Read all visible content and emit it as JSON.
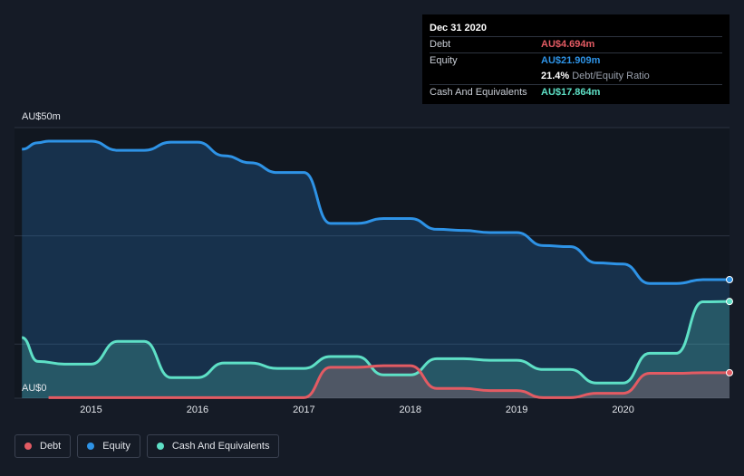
{
  "tooltip": {
    "date": "Dec 31 2020",
    "debt_label": "Debt",
    "debt_value": "AU$4.694m",
    "equity_label": "Equity",
    "equity_value": "AU$21.909m",
    "ratio_value": "21.4%",
    "ratio_label": "Debt/Equity Ratio",
    "cash_label": "Cash And Equivalents",
    "cash_value": "AU$17.864m"
  },
  "legend": [
    {
      "label": "Debt",
      "color": "#e35b63"
    },
    {
      "label": "Equity",
      "color": "#2e93e6"
    },
    {
      "label": "Cash And Equivalents",
      "color": "#5ee0c6"
    }
  ],
  "chart_data": {
    "type": "area",
    "ylim": [
      0,
      50
    ],
    "y_tick_labels": [
      "AU$0",
      "AU$50m"
    ],
    "x_tick_labels": [
      "2015",
      "2016",
      "2017",
      "2018",
      "2019",
      "2020"
    ],
    "x_ticks": [
      2015,
      2016,
      2017,
      2018,
      2019,
      2020
    ],
    "xlim": [
      2014.28,
      2021.0
    ],
    "colors": {
      "Debt": "#e35b63",
      "Equity": "#2e93e6",
      "Cash And Equivalents": "#5ee0c6"
    },
    "series": [
      {
        "name": "Equity",
        "x": [
          2014.35,
          2014.5,
          2014.6,
          2014.75,
          2015.0,
          2015.25,
          2015.5,
          2015.75,
          2016.0,
          2016.25,
          2016.5,
          2016.75,
          2017.0,
          2017.25,
          2017.5,
          2017.75,
          2018.0,
          2018.25,
          2018.5,
          2018.75,
          2019.0,
          2019.25,
          2019.5,
          2019.75,
          2020.0,
          2020.25,
          2020.5,
          2020.75,
          2021.0
        ],
        "y": [
          46.0,
          47.2,
          47.5,
          47.5,
          47.5,
          45.8,
          45.8,
          47.3,
          47.3,
          44.8,
          43.5,
          41.7,
          41.7,
          32.3,
          32.3,
          33.2,
          33.2,
          31.2,
          31.0,
          30.6,
          30.6,
          28.2,
          28.0,
          25.0,
          24.8,
          21.2,
          21.2,
          21.9,
          21.909
        ]
      },
      {
        "name": "Cash And Equivalents",
        "x": [
          2014.35,
          2014.5,
          2014.75,
          2015.0,
          2015.25,
          2015.5,
          2015.75,
          2016.0,
          2016.25,
          2016.5,
          2016.75,
          2017.0,
          2017.25,
          2017.5,
          2017.75,
          2018.0,
          2018.25,
          2018.5,
          2018.75,
          2019.0,
          2019.25,
          2019.5,
          2019.75,
          2020.0,
          2020.25,
          2020.5,
          2020.75,
          2021.0
        ],
        "y": [
          11.2,
          6.8,
          6.3,
          6.3,
          10.5,
          10.5,
          3.8,
          3.8,
          6.5,
          6.5,
          5.5,
          5.5,
          7.7,
          7.7,
          4.3,
          4.3,
          7.3,
          7.3,
          7.0,
          7.0,
          5.3,
          5.3,
          2.8,
          2.8,
          8.3,
          8.3,
          17.8,
          17.864
        ]
      },
      {
        "name": "Debt",
        "x": [
          2014.6,
          2015.0,
          2016.0,
          2017.0,
          2017.25,
          2017.5,
          2017.75,
          2018.0,
          2018.25,
          2018.5,
          2018.75,
          2019.0,
          2019.25,
          2019.5,
          2019.75,
          2020.0,
          2020.25,
          2020.5,
          2020.75,
          2021.0
        ],
        "y": [
          0.1,
          0.1,
          0.1,
          0.1,
          5.7,
          5.7,
          6.0,
          6.0,
          1.8,
          1.8,
          1.4,
          1.4,
          0.1,
          0.1,
          0.9,
          0.9,
          4.6,
          4.6,
          4.7,
          4.694
        ]
      }
    ]
  }
}
